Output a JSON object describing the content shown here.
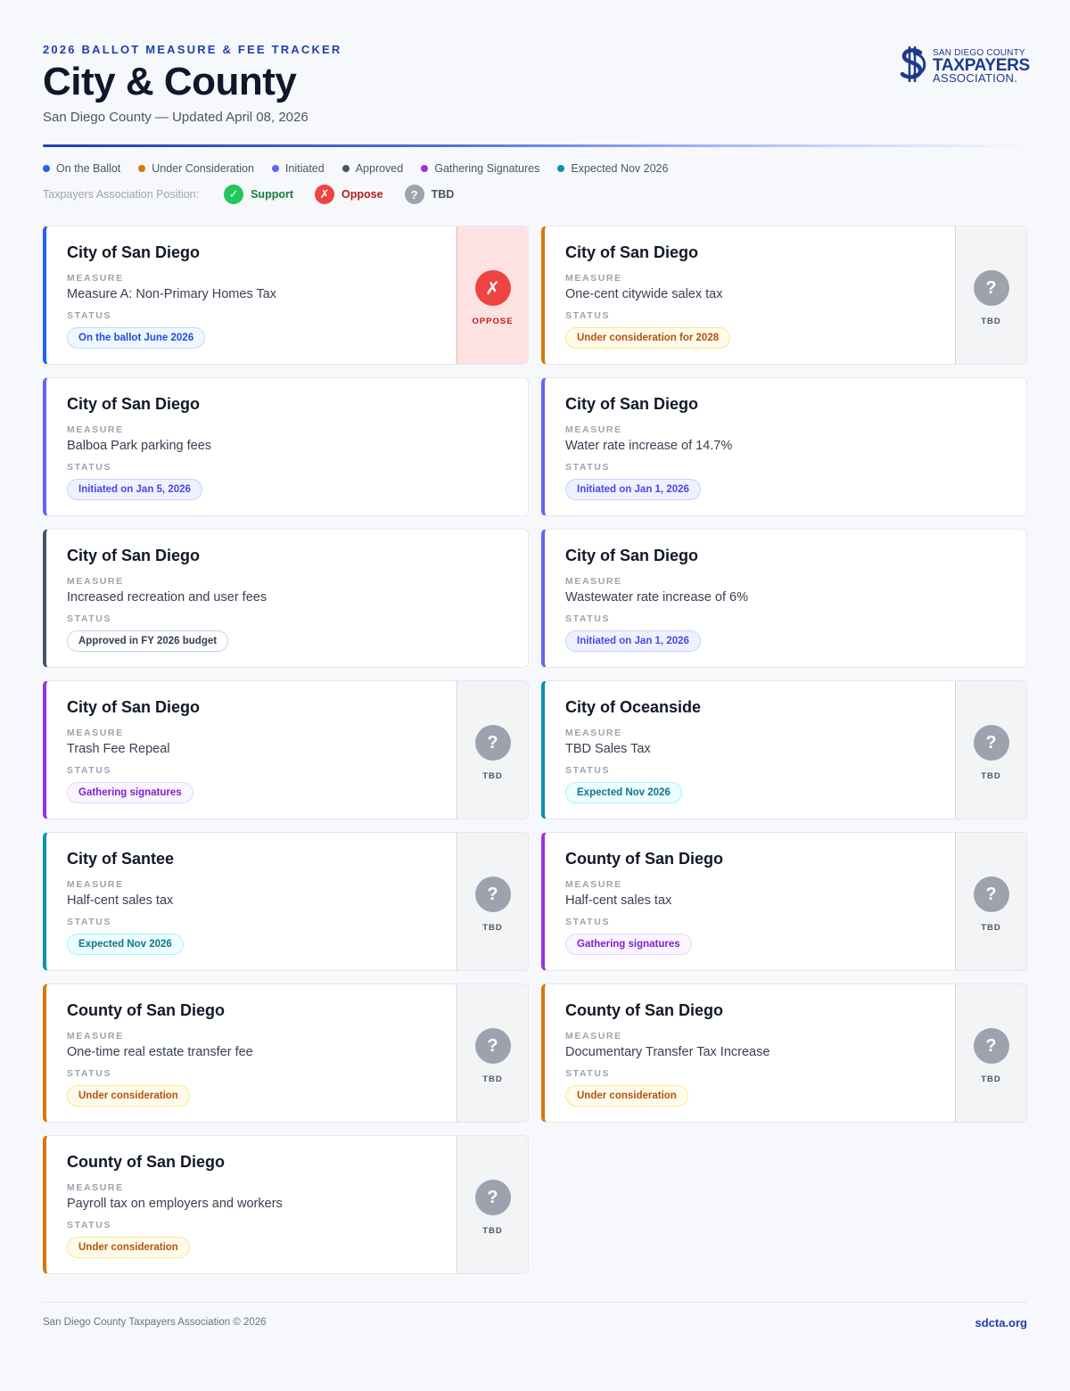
{
  "header": {
    "eyebrow": "2026 BALLOT MEASURE & FEE TRACKER",
    "title": "City & County",
    "subtitle": "San Diego County — Updated April 08, 2026",
    "logo": {
      "line1": "SAN DIEGO COUNTY",
      "line2": "TAXPAYERS",
      "line3": "ASSOCIATION."
    }
  },
  "legend": [
    {
      "label": "On the Ballot",
      "color": "#2563eb"
    },
    {
      "label": "Under Consideration",
      "color": "#d97706"
    },
    {
      "label": "Initiated",
      "color": "#6366f1"
    },
    {
      "label": "Approved",
      "color": "#475569"
    },
    {
      "label": "Gathering Signatures",
      "color": "#9333ea"
    },
    {
      "label": "Expected Nov 2026",
      "color": "#0891b2"
    }
  ],
  "position_legend": {
    "label": "Taxpayers Association Position:",
    "items": [
      {
        "label": "Support",
        "icon": "check-icon",
        "glyph": "✓",
        "color": "#22c55e",
        "text_color": "#15803d"
      },
      {
        "label": "Oppose",
        "icon": "x-icon",
        "glyph": "✗",
        "color": "#ef4444",
        "text_color": "#b91c1c"
      },
      {
        "label": "TBD",
        "icon": "question-icon",
        "glyph": "?",
        "color": "#9ca3af",
        "text_color": "#4b5563"
      }
    ]
  },
  "labels": {
    "measure": "MEASURE",
    "status": "STATUS"
  },
  "cards": [
    {
      "entity": "City of San Diego",
      "measure": "Measure A: Non-Primary Homes Tax",
      "status": "On the ballot June 2026",
      "status_type": "ballot",
      "position": "OPPOSE"
    },
    {
      "entity": "City of San Diego",
      "measure": "One-cent citywide salex tax",
      "status": "Under consideration for 2028",
      "status_type": "consideration",
      "position": "TBD"
    },
    {
      "entity": "City of San Diego",
      "measure": "Balboa Park parking fees",
      "status": "Initiated on Jan 5, 2026",
      "status_type": "initiated",
      "position": ""
    },
    {
      "entity": "City of San Diego",
      "measure": "Water rate increase of 14.7%",
      "status": "Initiated on Jan 1, 2026",
      "status_type": "initiated",
      "position": ""
    },
    {
      "entity": "City of San Diego",
      "measure": "Increased recreation and user fees",
      "status": "Approved in FY 2026 budget",
      "status_type": "approved",
      "position": ""
    },
    {
      "entity": "City of San Diego",
      "measure": "Wastewater rate increase of 6%",
      "status": "Initiated on Jan 1, 2026",
      "status_type": "initiated",
      "position": ""
    },
    {
      "entity": "City of San Diego",
      "measure": "Trash Fee Repeal",
      "status": "Gathering signatures",
      "status_type": "gathering",
      "position": "TBD"
    },
    {
      "entity": "City of Oceanside",
      "measure": "TBD Sales Tax",
      "status": "Expected Nov 2026",
      "status_type": "expected",
      "position": "TBD"
    },
    {
      "entity": "City of Santee",
      "measure": "Half-cent sales tax",
      "status": "Expected Nov 2026",
      "status_type": "expected",
      "position": "TBD"
    },
    {
      "entity": "County of San Diego",
      "measure": "Half-cent sales tax",
      "status": "Gathering signatures",
      "status_type": "gathering",
      "position": "TBD"
    },
    {
      "entity": "County of San Diego",
      "measure": "One-time real estate transfer fee",
      "status": "Under consideration",
      "status_type": "consideration",
      "position": "TBD"
    },
    {
      "entity": "County of San Diego",
      "measure": "Documentary Transfer Tax Increase",
      "status": "Under consideration",
      "status_type": "consideration",
      "position": "TBD"
    },
    {
      "entity": "County of San Diego",
      "measure": "Payroll tax on employers and workers",
      "status": "Under consideration",
      "status_type": "consideration",
      "position": "TBD"
    }
  ],
  "status_styles": {
    "ballot": {
      "accent": "#2563eb",
      "text": "#1d4ed8",
      "bg": "#eff6ff",
      "border": "#bfdbfe"
    },
    "consideration": {
      "accent": "#d97706",
      "text": "#b45309",
      "bg": "#fffbeb",
      "border": "#fde68a"
    },
    "initiated": {
      "accent": "#6366f1",
      "text": "#4f46e5",
      "bg": "#eef2ff",
      "border": "#c7d2fe"
    },
    "approved": {
      "accent": "#475569",
      "text": "#334155",
      "bg": "#ffffff",
      "border": "#cbd5e1"
    },
    "gathering": {
      "accent": "#9333ea",
      "text": "#7e22ce",
      "bg": "#faf5ff",
      "border": "#e9d5ff"
    },
    "expected": {
      "accent": "#0891b2",
      "text": "#0e7490",
      "bg": "#ecfeff",
      "border": "#a5f3fc"
    }
  },
  "position_styles": {
    "OPPOSE": {
      "glyph": "✗",
      "icon_name": "x-icon",
      "icon_bg": "#ef4444",
      "panel_bg": "#fee2e2",
      "panel_border": "#fca5a5",
      "label_color": "#b91c1c"
    },
    "TBD": {
      "glyph": "?",
      "icon_name": "question-icon",
      "icon_bg": "#9ca3af",
      "panel_bg": "#f3f4f6",
      "panel_border": "#d1d5db",
      "label_color": "#4b5563"
    }
  },
  "footer": {
    "left": "San Diego County Taxpayers Association © 2026",
    "right": "sdcta.org"
  }
}
